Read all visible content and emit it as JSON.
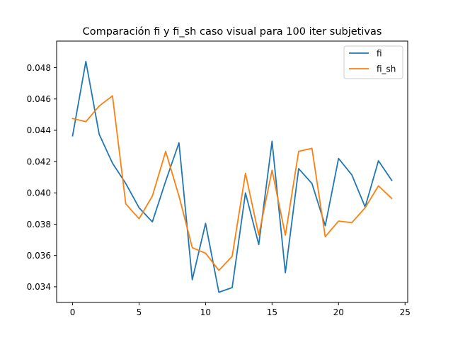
{
  "chart_data": {
    "type": "line",
    "title": "Comparación fi y fi_sh caso visual para 100 iter subjetivas",
    "xlabel": "",
    "ylabel": "",
    "xlim": [
      -1.2,
      25.2
    ],
    "ylim": [
      0.033,
      0.0497
    ],
    "xticks": [
      0,
      5,
      10,
      15,
      20,
      25
    ],
    "yticks": [
      0.034,
      0.036,
      0.038,
      0.04,
      0.042,
      0.044,
      0.046,
      0.048
    ],
    "ytick_labels": [
      "0.034",
      "0.036",
      "0.038",
      "0.040",
      "0.042",
      "0.044",
      "0.046",
      "0.048"
    ],
    "grid": false,
    "legend_position": "upper-right",
    "x": [
      0,
      1,
      2,
      3,
      4,
      5,
      6,
      7,
      8,
      9,
      10,
      11,
      12,
      13,
      14,
      15,
      16,
      17,
      18,
      19,
      20,
      21,
      22,
      23,
      24
    ],
    "series": [
      {
        "name": "fi",
        "color": "#1f77b4",
        "values": [
          0.04365,
          0.0484,
          0.04375,
          0.0419,
          0.0406,
          0.03905,
          0.03815,
          0.04075,
          0.0432,
          0.03445,
          0.03805,
          0.03365,
          0.03395,
          0.04,
          0.0367,
          0.0433,
          0.0349,
          0.04155,
          0.0406,
          0.0379,
          0.0422,
          0.04115,
          0.0391,
          0.04205,
          0.0408
        ]
      },
      {
        "name": "fi_sh",
        "color": "#ff7f0e",
        "values": [
          0.04475,
          0.04455,
          0.04555,
          0.0462,
          0.0393,
          0.03835,
          0.0398,
          0.04265,
          0.0398,
          0.0365,
          0.03615,
          0.03505,
          0.03595,
          0.04125,
          0.0373,
          0.04145,
          0.0373,
          0.04265,
          0.04285,
          0.0372,
          0.0382,
          0.0381,
          0.03905,
          0.04045,
          0.03965
        ]
      }
    ]
  }
}
